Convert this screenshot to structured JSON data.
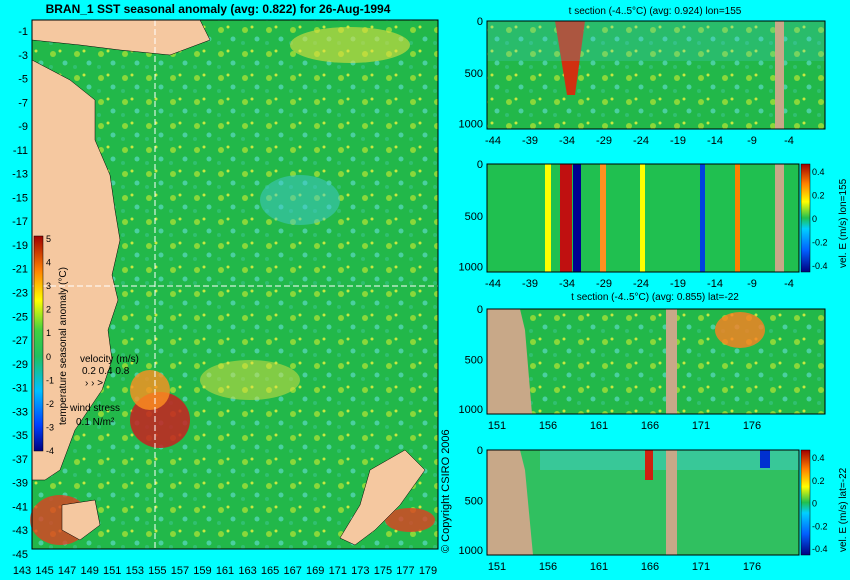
{
  "copyright": "© Copyright CSIRO 2006",
  "chart_data": [
    {
      "type": "heatmap",
      "title": "BRAN_1 SST seasonal anomaly (avg: 0.822) for 26-Aug-1994",
      "x_ticks": [
        "143",
        "145",
        "147",
        "149",
        "151",
        "153",
        "155",
        "157",
        "159",
        "161",
        "163",
        "165",
        "167",
        "169",
        "171",
        "173",
        "175",
        "177",
        "179"
      ],
      "y_ticks": [
        "-1",
        "-3",
        "-5",
        "-7",
        "-9",
        "-11",
        "-13",
        "-15",
        "-17",
        "-19",
        "-21",
        "-23",
        "-25",
        "-27",
        "-29",
        "-31",
        "-33",
        "-35",
        "-37",
        "-39",
        "-41",
        "-43",
        "-45"
      ],
      "xlim": [
        142,
        180
      ],
      "ylim": [
        -45,
        0
      ],
      "colorbar": {
        "label": "temperature seasonal anomaly (°C)",
        "ticks": [
          "5",
          "4",
          "3",
          "2",
          "1",
          "0",
          "-1",
          "-2",
          "-3",
          "-4"
        ],
        "range": [
          -4,
          5
        ]
      },
      "legend": {
        "velocity_label": "velocity (m/s)",
        "velocity_values": "0.2 0.4 0.8",
        "wind_label": "wind stress",
        "wind_value": "0.1 N/m²"
      },
      "section_lines": {
        "lon": 155,
        "lat": -22
      },
      "colors": {
        "land": "#f5c8a0",
        "background": "#00ffff",
        "dominant": "#1fb84a"
      }
    },
    {
      "type": "heatmap",
      "title": "t section (-4..5°C) (avg: 0.924) lon=155",
      "x_ticks": [
        "-44",
        "-39",
        "-34",
        "-29",
        "-24",
        "-19",
        "-14",
        "-9",
        "-4"
      ],
      "y_ticks": [
        "0",
        "500",
        "1000"
      ],
      "xlabel": "",
      "ylabel": ""
    },
    {
      "type": "heatmap",
      "title": "",
      "x_ticks": [
        "-44",
        "-39",
        "-34",
        "-29",
        "-24",
        "-19",
        "-14",
        "-9",
        "-4"
      ],
      "y_ticks": [
        "0",
        "500",
        "1000"
      ],
      "colorbar": {
        "label": "vel. E (m/s) lon=155",
        "ticks": [
          "0.4",
          "0.2",
          "0",
          "-0.2",
          "-0.4"
        ],
        "range": [
          -0.4,
          0.4
        ]
      }
    },
    {
      "type": "heatmap",
      "title": "t section (-4..5°C) (avg: 0.855) lat=-22",
      "x_ticks": [
        "151",
        "156",
        "161",
        "166",
        "171",
        "176"
      ],
      "y_ticks": [
        "0",
        "500",
        "1000"
      ]
    },
    {
      "type": "heatmap",
      "title": "",
      "x_ticks": [
        "151",
        "156",
        "161",
        "166",
        "171",
        "176"
      ],
      "y_ticks": [
        "0",
        "500",
        "1000"
      ],
      "colorbar": {
        "label": "vel. E (m/s) lat=-22",
        "ticks": [
          "0.4",
          "0.2",
          "0",
          "-0.2",
          "-0.4"
        ],
        "range": [
          -0.4,
          0.4
        ]
      }
    }
  ]
}
